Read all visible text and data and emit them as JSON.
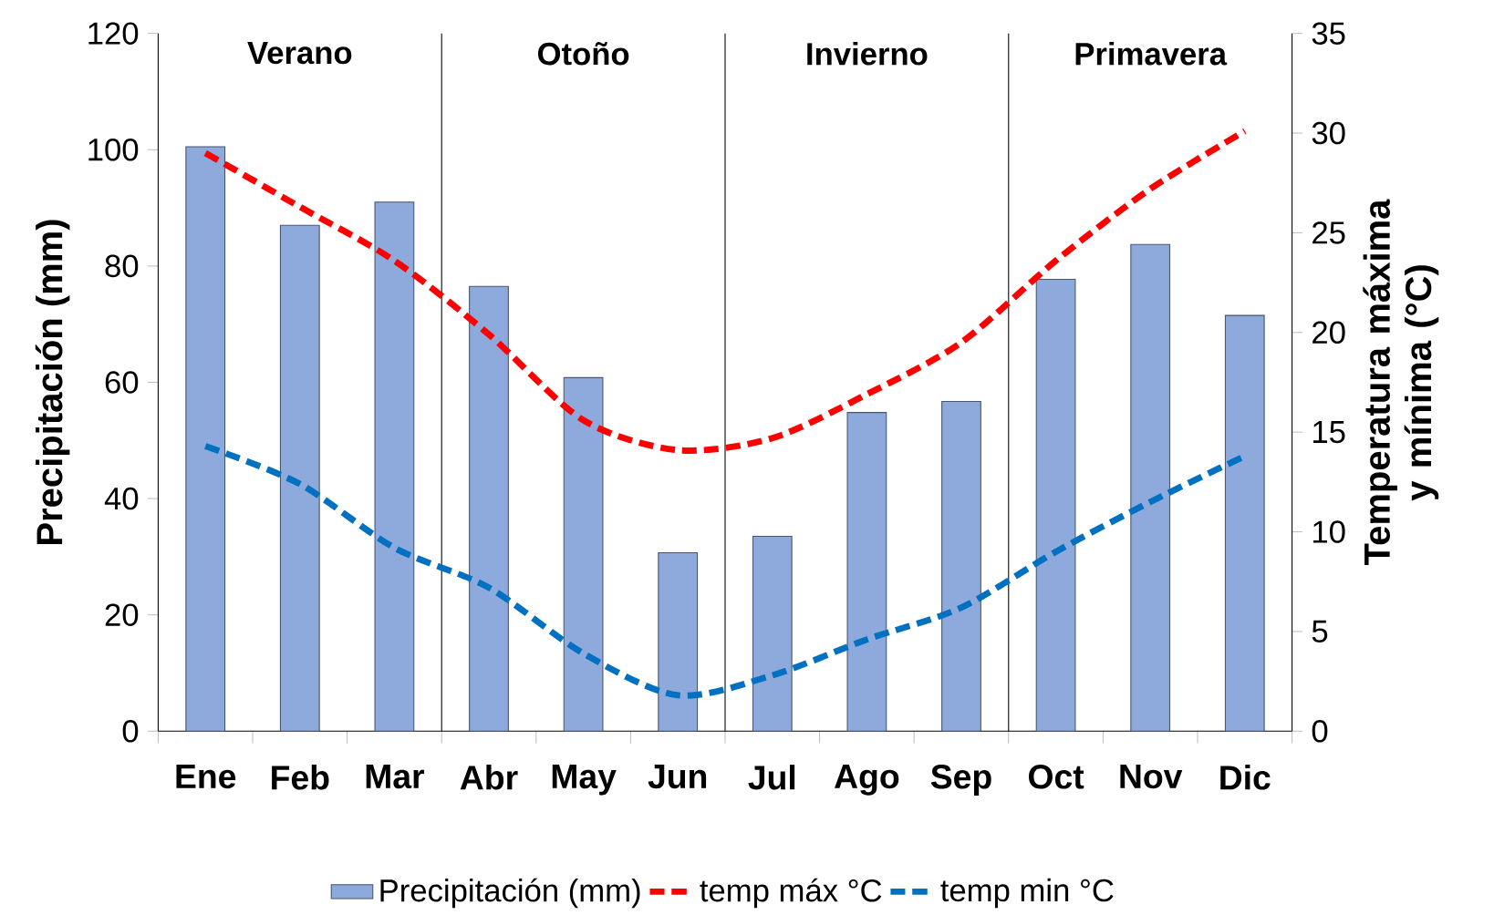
{
  "chart_data": {
    "type": "bar",
    "categories": [
      "Ene",
      "Feb",
      "Mar",
      "Abr",
      "May",
      "Jun",
      "Jul",
      "Ago",
      "Sep",
      "Oct",
      "Nov",
      "Dic"
    ],
    "series": [
      {
        "name": "Precipitación (mm)",
        "color": "#8EA9DB",
        "values": [
          100.5,
          87,
          91,
          76.5,
          60.8,
          30.7,
          33.5,
          54.8,
          56.7,
          77.7,
          83.7,
          71.5
        ]
      },
      {
        "name": "temp máx °C",
        "type": "line",
        "axis": "y2",
        "color": "#FF0000",
        "line_style": "dashed",
        "values": [
          29,
          26.3,
          23.6,
          19.9,
          15.6,
          14.1,
          14.7,
          16.9,
          19.5,
          23.6,
          27.2,
          30.1
        ]
      },
      {
        "name": "temp min °C",
        "type": "line",
        "axis": "y2",
        "color": "#0070C0",
        "line_style": "dashed",
        "values": [
          14.3,
          12.4,
          9.2,
          7.2,
          3.9,
          1.8,
          2.8,
          4.6,
          6.2,
          9.0,
          11.5,
          13.8
        ]
      }
    ],
    "ylabel": "Precipitación (mm)",
    "y2label": "Temperatura máxima y mínima (°C)",
    "ylim": [
      0,
      120
    ],
    "yticks": [
      0,
      20,
      40,
      60,
      80,
      100,
      120
    ],
    "y2lim": [
      0,
      35
    ],
    "y2ticks": [
      0,
      5,
      10,
      15,
      20,
      25,
      30,
      35
    ],
    "annotations": [
      "Verano",
      "Otoño",
      "Invierno",
      "Primavera"
    ],
    "grid": false,
    "legend": "bottom",
    "marker": "none"
  }
}
